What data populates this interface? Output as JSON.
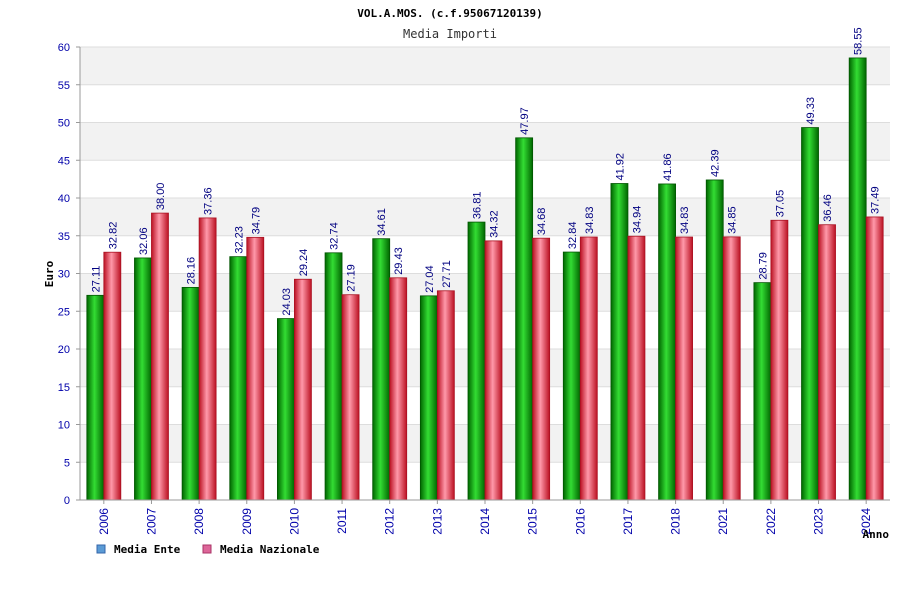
{
  "chart_data": {
    "type": "bar",
    "title": "VOL.A.MOS. (c.f.95067120139)",
    "subtitle": "Media Importi",
    "xlabel": "Anno",
    "ylabel": "Euro",
    "ylim": [
      0,
      60
    ],
    "yticks": [
      0,
      5,
      10,
      15,
      20,
      25,
      30,
      35,
      40,
      45,
      50,
      55,
      60
    ],
    "grid": true,
    "legend_position": "bottom-left",
    "categories": [
      "2006",
      "2007",
      "2008",
      "2009",
      "2010",
      "2011",
      "2012",
      "2013",
      "2014",
      "2015",
      "2016",
      "2017",
      "2018",
      "2021",
      "2022",
      "2023",
      "2024"
    ],
    "series": [
      {
        "name": "Media Ente",
        "legend_color": "#5b9bd5",
        "bar_color": "#00aa00",
        "values": [
          27.11,
          32.06,
          28.16,
          32.23,
          24.03,
          32.74,
          34.61,
          27.04,
          36.81,
          47.97,
          32.84,
          41.92,
          41.86,
          42.39,
          28.79,
          49.33,
          58.55
        ]
      },
      {
        "name": "Media Nazionale",
        "legend_color": "#dd6699",
        "bar_color": "#ee3344",
        "values": [
          32.82,
          38.0,
          37.36,
          34.79,
          29.24,
          27.19,
          29.43,
          27.71,
          34.32,
          34.68,
          34.83,
          34.94,
          34.83,
          34.85,
          37.05,
          36.46,
          37.49
        ]
      }
    ]
  }
}
